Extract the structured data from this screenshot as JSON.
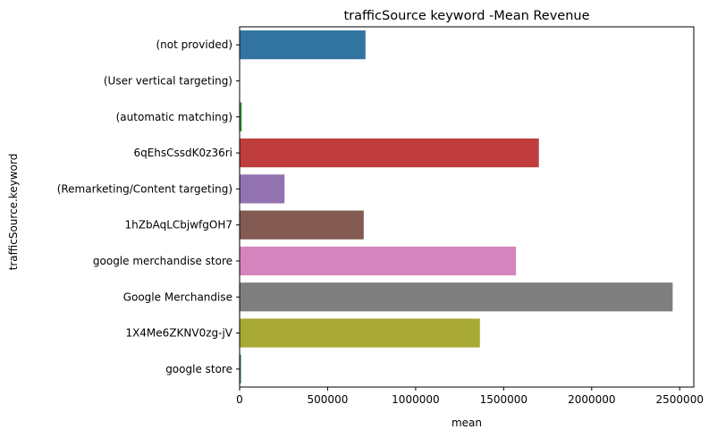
{
  "chart_data": {
    "type": "bar",
    "orientation": "horizontal",
    "title": "trafficSource keyword -Mean Revenue",
    "xlabel": "mean",
    "ylabel": "trafficSource.keyword",
    "xlim": [
      0,
      2580000
    ],
    "xticks": [
      0,
      500000,
      1000000,
      1500000,
      2000000,
      2500000
    ],
    "xtick_labels": [
      "0",
      "500000",
      "1000000",
      "1500000",
      "2000000",
      "2500000"
    ],
    "grid": false,
    "categories": [
      "(not provided)",
      "(User vertical targeting)",
      "(automatic matching)",
      "6qEhsCssdK0z36ri",
      "(Remarketing/Content targeting)",
      "1hZbAqLCbjwfgOH7",
      "google merchandise store",
      "Google Merchandise",
      "1X4Me6ZKNV0zg-jV",
      "google store"
    ],
    "values": [
      715000,
      0,
      12000,
      1700000,
      255000,
      705000,
      1570000,
      2460000,
      1365000,
      8000
    ],
    "colors": [
      "#3274a1",
      "#e1812c",
      "#3a923a",
      "#c03d3e",
      "#9372b2",
      "#845b53",
      "#d684bd",
      "#7f7f7f",
      "#a9aa35",
      "#2e8b57"
    ]
  }
}
